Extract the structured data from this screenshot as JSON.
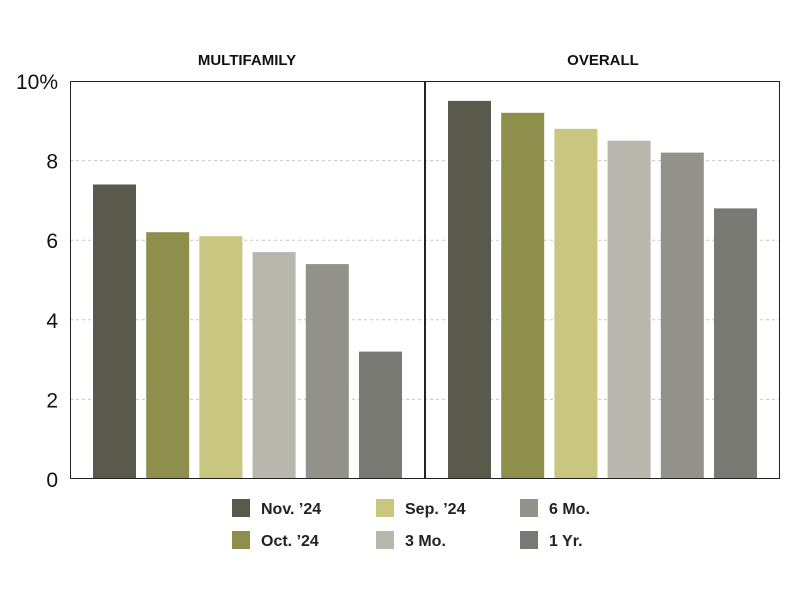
{
  "chart_data": {
    "type": "bar",
    "panels": [
      {
        "title": "MULTIFAMILY",
        "values": [
          7.4,
          6.2,
          6.1,
          5.7,
          5.4,
          3.2
        ]
      },
      {
        "title": "OVERALL",
        "values": [
          9.5,
          9.2,
          8.8,
          8.5,
          8.2,
          6.8
        ]
      }
    ],
    "series": [
      {
        "name": "Nov. ’24",
        "color": "#5a5a4c"
      },
      {
        "name": "Oct. ’24",
        "color": "#8f8f4d"
      },
      {
        "name": "Sep. ’24",
        "color": "#c8c67f"
      },
      {
        "name": "3 Mo.",
        "color": "#b8b6ad"
      },
      {
        "name": "6 Mo.",
        "color": "#92928a"
      },
      {
        "name": "1 Yr.",
        "color": "#787972"
      }
    ],
    "y_ticks": [
      "0",
      "2",
      "4",
      "6",
      "8",
      "10%"
    ],
    "ylim": [
      0,
      10
    ],
    "grid": true,
    "legend_position": "bottom"
  }
}
